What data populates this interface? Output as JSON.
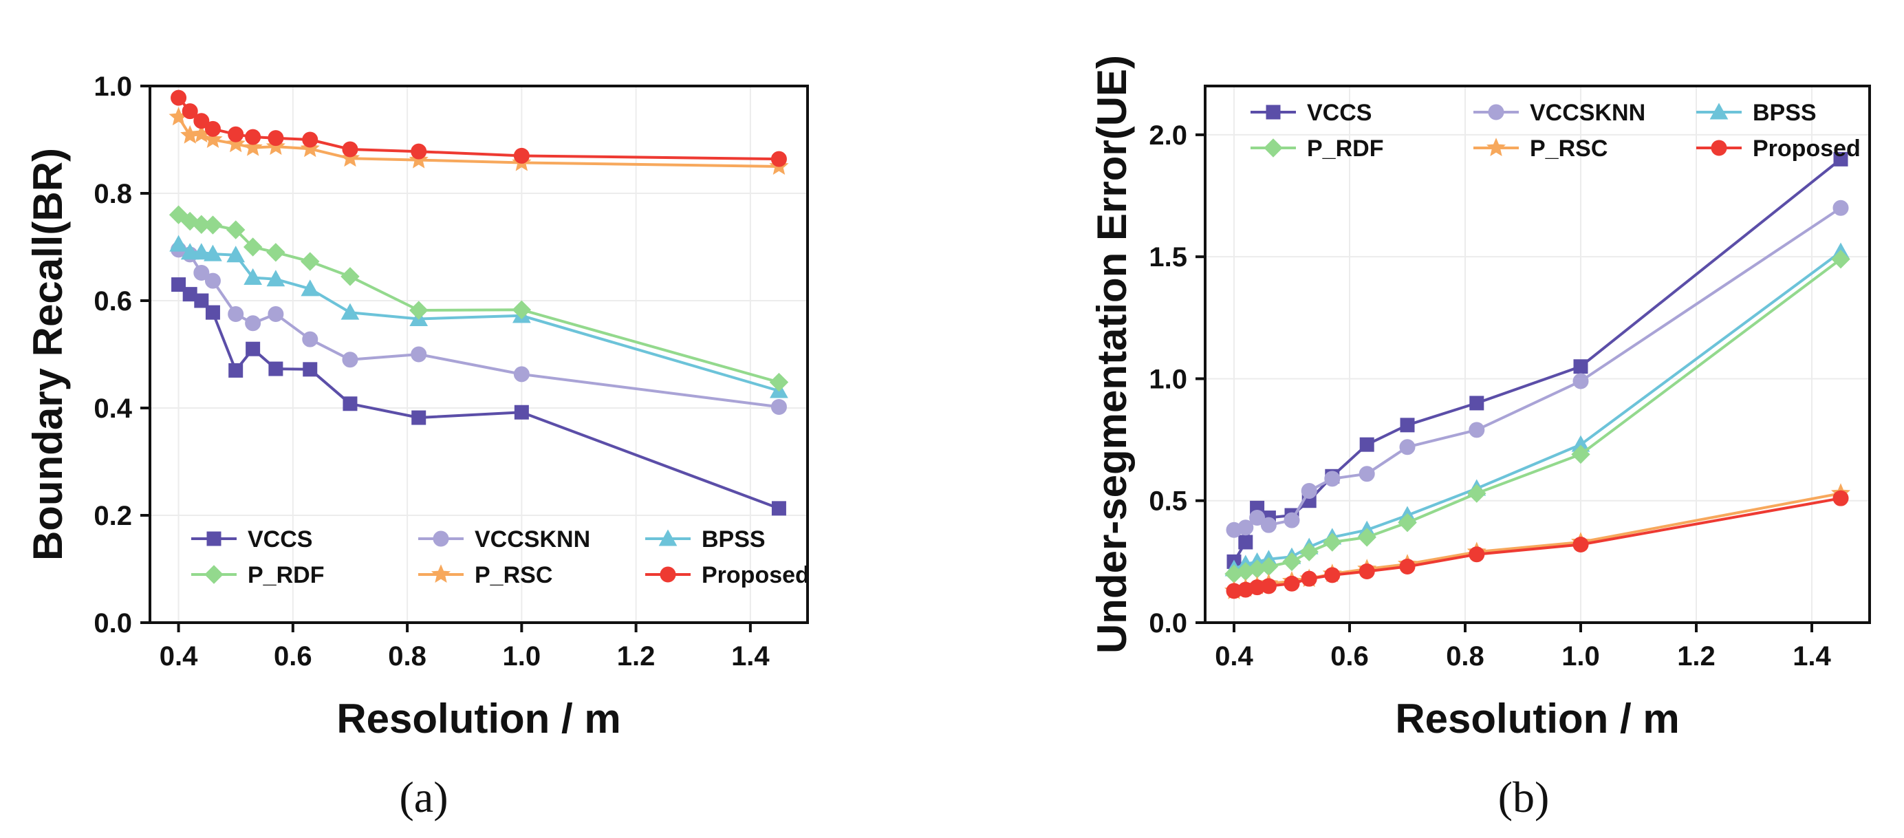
{
  "x": [
    0.4,
    0.42,
    0.44,
    0.46,
    0.5,
    0.53,
    0.57,
    0.63,
    0.7,
    0.82,
    1.0,
    1.45
  ],
  "chart_data": [
    {
      "type": "line",
      "title": "",
      "xlabel": "Resolution / m",
      "ylabel": "Boundary Recall(BR)",
      "caption": "(a)",
      "xlim": [
        0.35,
        1.5
      ],
      "ylim": [
        0.0,
        1.0
      ],
      "xticks": [
        0.4,
        0.6,
        0.8,
        1.0,
        1.2,
        1.4
      ],
      "xtick_labels": [
        "0.4",
        "0.6",
        "0.8",
        "1.0",
        "1.2",
        "1.4"
      ],
      "yticks": [
        0.0,
        0.2,
        0.4,
        0.6,
        0.8,
        1.0
      ],
      "ytick_labels": [
        "0.0",
        "0.2",
        "0.4",
        "0.6",
        "0.8",
        "1.0"
      ],
      "legend_position": "bottom",
      "series": [
        {
          "name": "VCCS",
          "color": "#5b4ea8",
          "marker": "square",
          "values": [
            0.63,
            0.612,
            0.6,
            0.578,
            0.47,
            0.51,
            0.473,
            0.472,
            0.408,
            0.382,
            0.392,
            0.213
          ]
        },
        {
          "name": "VCCSKNN",
          "color": "#a9a3d6",
          "marker": "circle",
          "values": [
            0.695,
            0.686,
            0.652,
            0.637,
            0.575,
            0.558,
            0.575,
            0.528,
            0.49,
            0.5,
            0.463,
            0.402
          ]
        },
        {
          "name": "BPSS",
          "color": "#6cc3d9",
          "marker": "triangle",
          "values": [
            0.705,
            0.69,
            0.69,
            0.687,
            0.685,
            0.643,
            0.64,
            0.622,
            0.578,
            0.566,
            0.572,
            0.432
          ]
        },
        {
          "name": "P_RDF",
          "color": "#93d98d",
          "marker": "diamond",
          "values": [
            0.76,
            0.748,
            0.742,
            0.741,
            0.732,
            0.7,
            0.69,
            0.673,
            0.645,
            0.582,
            0.583,
            0.448
          ]
        },
        {
          "name": "P_RSC",
          "color": "#f7a85c",
          "marker": "star",
          "values": [
            0.942,
            0.908,
            0.91,
            0.9,
            0.892,
            0.885,
            0.887,
            0.883,
            0.865,
            0.862,
            0.857,
            0.85
          ]
        },
        {
          "name": "Proposed",
          "color": "#ee3a32",
          "marker": "circle",
          "values": [
            0.978,
            0.953,
            0.935,
            0.92,
            0.91,
            0.905,
            0.903,
            0.9,
            0.882,
            0.878,
            0.87,
            0.864
          ]
        }
      ]
    },
    {
      "type": "line",
      "title": "",
      "xlabel": "Resolution / m",
      "ylabel": "Under-segmentation Error(UE)",
      "caption": "(b)",
      "xlim": [
        0.35,
        1.5
      ],
      "ylim": [
        0.0,
        2.2
      ],
      "xticks": [
        0.4,
        0.6,
        0.8,
        1.0,
        1.2,
        1.4
      ],
      "xtick_labels": [
        "0.4",
        "0.6",
        "0.8",
        "1.0",
        "1.2",
        "1.4"
      ],
      "yticks": [
        0.0,
        0.5,
        1.0,
        1.5,
        2.0
      ],
      "ytick_labels": [
        "0.0",
        "0.5",
        "1.0",
        "1.5",
        "2.0"
      ],
      "legend_position": "top",
      "series": [
        {
          "name": "VCCS",
          "color": "#5b4ea8",
          "marker": "square",
          "values": [
            0.25,
            0.33,
            0.47,
            0.43,
            0.44,
            0.5,
            0.6,
            0.73,
            0.81,
            0.9,
            1.05,
            1.9
          ]
        },
        {
          "name": "VCCSKNN",
          "color": "#a9a3d6",
          "marker": "circle",
          "values": [
            0.38,
            0.39,
            0.43,
            0.4,
            0.42,
            0.54,
            0.59,
            0.61,
            0.72,
            0.79,
            0.99,
            1.7
          ]
        },
        {
          "name": "BPSS",
          "color": "#6cc3d9",
          "marker": "triangle",
          "values": [
            0.22,
            0.24,
            0.25,
            0.26,
            0.27,
            0.31,
            0.35,
            0.38,
            0.44,
            0.55,
            0.73,
            1.52
          ]
        },
        {
          "name": "P_RDF",
          "color": "#93d98d",
          "marker": "diamond",
          "values": [
            0.2,
            0.21,
            0.22,
            0.23,
            0.25,
            0.29,
            0.33,
            0.35,
            0.41,
            0.53,
            0.69,
            1.49
          ]
        },
        {
          "name": "P_RSC",
          "color": "#f7a85c",
          "marker": "star",
          "values": [
            0.13,
            0.14,
            0.15,
            0.16,
            0.17,
            0.18,
            0.2,
            0.22,
            0.24,
            0.29,
            0.33,
            0.53
          ]
        },
        {
          "name": "Proposed",
          "color": "#ee3a32",
          "marker": "circle",
          "values": [
            0.13,
            0.135,
            0.145,
            0.15,
            0.16,
            0.18,
            0.195,
            0.21,
            0.23,
            0.28,
            0.32,
            0.51
          ]
        }
      ]
    }
  ]
}
